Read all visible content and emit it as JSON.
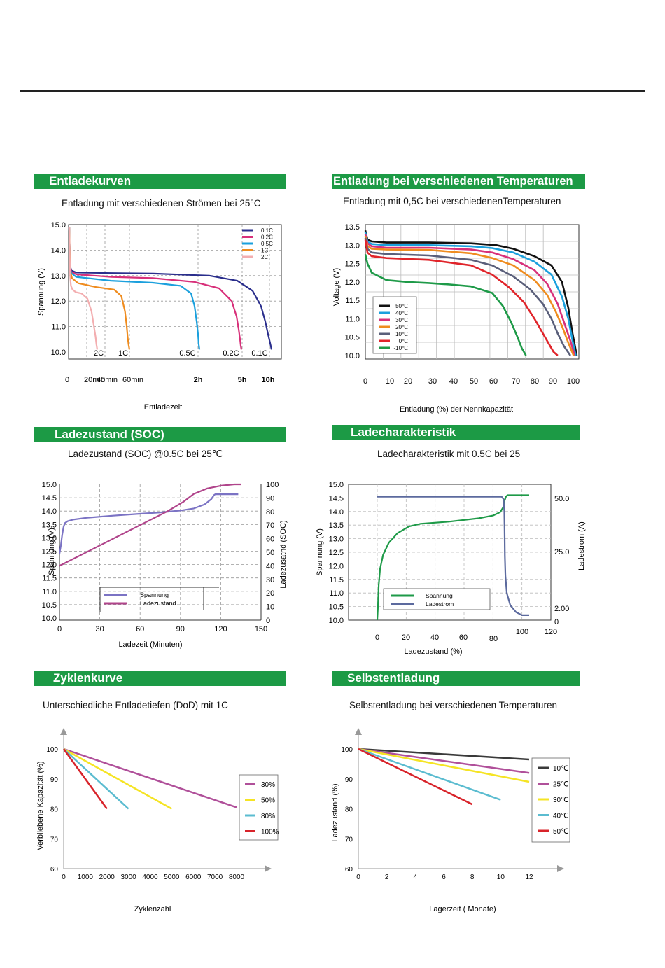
{
  "charts": [
    {
      "header": "Entladekurven",
      "chart_data": {
        "type": "line",
        "title": "Entladung mit verschiedenen Strömen bei 25°C",
        "xlabel": "Entladezeit",
        "ylabel": "Spannung (V)",
        "ylim": [
          10.0,
          15.0
        ],
        "yticks": [
          "15.0",
          "14.0",
          "13.0",
          "12.0",
          "11.0",
          "10.0"
        ],
        "xtick_labels": [
          "0",
          "20min",
          "40min",
          "60min",
          "2h",
          "5h",
          "10h"
        ],
        "grid": true,
        "legend_position": "top-right",
        "series": [
          {
            "name": "0.1C",
            "inline_label": "0.1C",
            "color": "#2a2e8c",
            "x": [
              0,
              1,
              3,
              10,
              60,
              120,
              200,
              240,
              262,
              274,
              280,
              284,
              287,
              289
            ],
            "y": [
              14.9,
              13.4,
              13.2,
              13.12,
              13.1,
              13.08,
              13.0,
              12.8,
              12.4,
              11.8,
              11.2,
              10.7,
              10.35,
              10.1
            ]
          },
          {
            "name": "0.2C",
            "inline_label": "0.2C",
            "color": "#d8307a",
            "x": [
              0,
              1,
              3,
              10,
              60,
              120,
              180,
              215,
              233,
              240,
              243,
              245,
              246,
              247
            ],
            "y": [
              14.9,
              13.35,
              13.15,
              13.05,
              12.95,
              12.9,
              12.75,
              12.5,
              12.0,
              11.4,
              10.9,
              10.5,
              10.25,
              10.1
            ]
          },
          {
            "name": "0.5C",
            "inline_label": "0.5C",
            "color": "#1ba0dd",
            "x": [
              0,
              1,
              3,
              10,
              60,
              120,
              160,
              175,
              180,
              183,
              185,
              186,
              187
            ],
            "y": [
              14.9,
              13.3,
              13.1,
              12.95,
              12.8,
              12.72,
              12.6,
              12.3,
              11.8,
              11.2,
              10.7,
              10.3,
              10.1
            ]
          },
          {
            "name": "1C",
            "inline_label": "1C",
            "color": "#ef8c1f",
            "x": [
              0,
              1,
              3,
              10,
              30,
              50,
              58,
              62,
              64,
              65,
              66,
              67
            ],
            "y": [
              14.9,
              13.2,
              12.9,
              12.7,
              12.55,
              12.45,
              12.2,
              11.6,
              11.0,
              10.6,
              10.3,
              10.1
            ]
          },
          {
            "name": "2C",
            "inline_label": "2C",
            "color": "#f3aeb0",
            "x": [
              0,
              1,
              2,
              4,
              8,
              15,
              22,
              27,
              30,
              32,
              33,
              34
            ],
            "y": [
              14.9,
              13.0,
              12.6,
              12.45,
              12.35,
              12.3,
              12.1,
              11.6,
              11.0,
              10.6,
              10.3,
              10.1
            ]
          }
        ]
      }
    },
    {
      "header": "Entladung bei verschiedenen Temperaturen",
      "chart_data": {
        "type": "line",
        "title": "Entladung mit 0,5C bei verschiedenenTemperaturen",
        "xlabel": "Entladung (%) der Nennkapazität",
        "ylabel": "Voltage (V)",
        "xlim": [
          0,
          100
        ],
        "ylim": [
          10.0,
          13.5
        ],
        "xticks": [
          0,
          10,
          20,
          30,
          40,
          50,
          60,
          70,
          80,
          90,
          100
        ],
        "yticks": [
          "13.5",
          "13.0",
          "12.5",
          "12.0",
          "11.5",
          "11.0",
          "10.5",
          "10.0"
        ],
        "grid": true,
        "legend_position": "bottom-left",
        "series": [
          {
            "name": "50℃",
            "color": "#111111",
            "x": [
              0,
              1,
              3,
              10,
              30,
              50,
              62,
              70,
              80,
              88,
              93,
              96,
              98,
              100
            ],
            "y": [
              13.4,
              13.15,
              13.1,
              13.07,
              13.07,
              13.05,
              13.0,
              12.9,
              12.7,
              12.45,
              12.0,
              11.3,
              10.6,
              10.0
            ]
          },
          {
            "name": "40℃",
            "color": "#1ba0dd",
            "x": [
              0,
              1,
              3,
              10,
              30,
              50,
              60,
              70,
              80,
              88,
              93,
              96,
              98,
              99.5
            ],
            "y": [
              13.35,
              13.1,
              13.03,
              13.0,
              13.0,
              12.97,
              12.92,
              12.8,
              12.55,
              12.2,
              11.6,
              11.0,
              10.4,
              10.0
            ]
          },
          {
            "name": "30℃",
            "color": "#d8307a",
            "x": [
              0,
              1,
              3,
              10,
              30,
              50,
              60,
              70,
              80,
              86,
              91,
              94,
              97,
              99
            ],
            "y": [
              13.3,
              13.05,
              12.97,
              12.93,
              12.93,
              12.88,
              12.8,
              12.62,
              12.32,
              11.95,
              11.4,
              10.9,
              10.4,
              10.0
            ]
          },
          {
            "name": "20℃",
            "color": "#ef8c1f",
            "x": [
              0,
              1,
              3,
              10,
              30,
              50,
              60,
              70,
              80,
              86,
              90,
              93,
              96,
              98.5
            ],
            "y": [
              13.25,
              12.98,
              12.9,
              12.88,
              12.87,
              12.78,
              12.65,
              12.45,
              12.05,
              11.65,
              11.2,
              10.8,
              10.35,
              10.0
            ]
          },
          {
            "name": "10℃",
            "color": "#5a5f7a",
            "x": [
              0,
              1,
              3,
              10,
              30,
              50,
              60,
              70,
              78,
              84,
              88,
              91,
              94,
              97
            ],
            "y": [
              13.2,
              12.9,
              12.8,
              12.76,
              12.72,
              12.6,
              12.45,
              12.15,
              11.8,
              11.4,
              11.0,
              10.6,
              10.25,
              10.0
            ]
          },
          {
            "name": "0℃",
            "color": "#e0242a",
            "x": [
              0,
              1,
              3,
              10,
              30,
              50,
              60,
              68,
              75,
              80,
              84,
              87,
              89,
              91
            ],
            "y": [
              13.15,
              12.8,
              12.7,
              12.65,
              12.6,
              12.45,
              12.2,
              11.85,
              11.45,
              11.0,
              10.6,
              10.3,
              10.1,
              10.0
            ]
          },
          {
            "name": "-10℃",
            "color": "#1e9a48",
            "x": [
              0,
              1,
              3,
              10,
              20,
              30,
              40,
              50,
              60,
              65,
              69,
              72,
              74,
              76
            ],
            "y": [
              12.75,
              12.5,
              12.25,
              12.05,
              12.0,
              11.97,
              11.93,
              11.88,
              11.7,
              11.35,
              10.9,
              10.5,
              10.2,
              10.0
            ]
          }
        ]
      }
    },
    {
      "header": "Ladezustand (SOC)",
      "chart_data": {
        "type": "line",
        "title": "Ladezustand (SOC) @0.5C bei 25℃",
        "xlabel": "Ladezeit (Minuten)",
        "ylabel": "Spannung (V)",
        "y2label": "Ladezusatnd (SOC)",
        "xlim": [
          0,
          150
        ],
        "ylim": [
          10.0,
          15.0
        ],
        "y2lim": [
          0,
          100
        ],
        "xticks": [
          0,
          30,
          60,
          90,
          120,
          150
        ],
        "yticks": [
          "15.0",
          "14.5",
          "14.0",
          "13.5",
          "13.0",
          "12.5",
          "12.0",
          "11.5",
          "11.0",
          "10.5",
          "10.0"
        ],
        "y2ticks": [
          100,
          90,
          80,
          70,
          60,
          50,
          40,
          30,
          20,
          10,
          0
        ],
        "grid": true,
        "legend_position": "bottom-center",
        "series": [
          {
            "name": "Spannung",
            "axis": "left",
            "color": "#7b73c4",
            "x": [
              0,
              1,
              2,
              3,
              4,
              6,
              10,
              20,
              40,
              60,
              75,
              90,
              100,
              108,
              113,
              115,
              116,
              133
            ],
            "y": [
              12.4,
              12.7,
              13.1,
              13.4,
              13.55,
              13.62,
              13.68,
              13.75,
              13.83,
              13.9,
              13.95,
              14.02,
              14.1,
              14.25,
              14.45,
              14.6,
              14.63,
              14.63
            ]
          },
          {
            "name": "Ladezustand",
            "axis": "right",
            "color": "#b0448b",
            "x": [
              0,
              30,
              60,
              80,
              92,
              100,
              110,
              120,
              130,
              135
            ],
            "y": [
              40,
              55,
              70,
              80,
              87,
              93,
              97,
              99,
              100,
              100
            ]
          }
        ]
      }
    },
    {
      "header": "Ladecharakteristik",
      "chart_data": {
        "type": "line",
        "title": "Ladecharakteristik mit 0.5C bei 25",
        "xlabel": "Ladezustand (%)",
        "ylabel": "Spannung (V)",
        "y2label": "Ladestrom (A)",
        "xlim": [
          -5,
          120
        ],
        "ylim": [
          10.0,
          15.0
        ],
        "xticks": [
          0,
          20,
          40,
          60,
          80,
          100,
          120
        ],
        "yticks": [
          "15.0",
          "14.5",
          "14.0",
          "13.5",
          "13.0",
          "12.5",
          "12.0",
          "11.5",
          "11.0",
          "10.5",
          "10.0"
        ],
        "y2ticks": [
          "50.0",
          "25.0",
          "2.00",
          "0"
        ],
        "grid": true,
        "legend_position": "bottom-left",
        "series": [
          {
            "name": "Spannung",
            "axis": "left",
            "color": "#1e9a48",
            "x": [
              0,
              0.5,
              1,
              2,
              4,
              8,
              14,
              22,
              30,
              50,
              70,
              80,
              85,
              87,
              88,
              89,
              90,
              105
            ],
            "y": [
              10.0,
              10.5,
              11.3,
              11.9,
              12.4,
              12.85,
              13.2,
              13.45,
              13.55,
              13.63,
              13.75,
              13.85,
              13.98,
              14.15,
              14.4,
              14.55,
              14.6,
              14.6
            ]
          },
          {
            "name": "Ladestrom",
            "axis": "right",
            "color": "#5c6a9e",
            "x": [
              0,
              86,
              87.3,
              87.8,
              88,
              88.2,
              88.6,
              89.5,
              92,
              96,
              100,
              105
            ],
            "y": [
              50.0,
              50.0,
              49.0,
              44.0,
              36.0,
              26.0,
              18.0,
              11.0,
              6.0,
              3.2,
              2.0,
              2.0
            ]
          }
        ]
      }
    },
    {
      "header": "Zyklenkurve",
      "chart_data": {
        "type": "line",
        "title": "Unterschiedliche Entladetiefen (DoD) mit 1C",
        "xlabel": "Zyklenzahl",
        "ylabel": "Verbliebene Kapazität (%)",
        "xlim": [
          0,
          8000
        ],
        "ylim": [
          60,
          100
        ],
        "xticks": [
          0,
          1000,
          2000,
          3000,
          4000,
          5000,
          6000,
          7000,
          8000
        ],
        "yticks": [
          100,
          90,
          80,
          70,
          60
        ],
        "grid": false,
        "legend_position": "right",
        "series": [
          {
            "name": "30%",
            "color": "#b0509a",
            "x": [
              0,
              8000
            ],
            "y": [
              100,
              80.5
            ]
          },
          {
            "name": "50%",
            "color": "#f5e424",
            "x": [
              0,
              5000
            ],
            "y": [
              100,
              80
            ]
          },
          {
            "name": "80%",
            "color": "#5bbcd0",
            "x": [
              0,
              3000
            ],
            "y": [
              100,
              80
            ]
          },
          {
            "name": "100%",
            "color": "#d8232a",
            "x": [
              0,
              2000
            ],
            "y": [
              100,
              80
            ]
          }
        ]
      }
    },
    {
      "header": "Selbstentladung",
      "chart_data": {
        "type": "line",
        "title": "Selbstentladung bei verschiedenen Temperaturen",
        "xlabel": "Lagerzeit ( Monate)",
        "ylabel": "Ladezustand (%)",
        "xlim": [
          0,
          12
        ],
        "ylim": [
          60,
          100
        ],
        "xticks": [
          0,
          2,
          4,
          6,
          8,
          10,
          12
        ],
        "yticks": [
          100,
          90,
          80,
          70,
          60
        ],
        "grid": false,
        "legend_position": "right",
        "series": [
          {
            "name": "10℃",
            "color": "#3a3a3a",
            "x": [
              0,
              12
            ],
            "y": [
              100,
              96.5
            ]
          },
          {
            "name": "25℃",
            "color": "#b0509a",
            "x": [
              0,
              12
            ],
            "y": [
              100,
              92
            ]
          },
          {
            "name": "30℃",
            "color": "#f5e424",
            "x": [
              0,
              12
            ],
            "y": [
              100,
              89
            ]
          },
          {
            "name": "40℃",
            "color": "#5bbcd0",
            "x": [
              0,
              10
            ],
            "y": [
              100,
              83
            ]
          },
          {
            "name": "50℃",
            "color": "#d8232a",
            "x": [
              0,
              8
            ],
            "y": [
              100,
              81.5
            ]
          }
        ]
      }
    }
  ]
}
